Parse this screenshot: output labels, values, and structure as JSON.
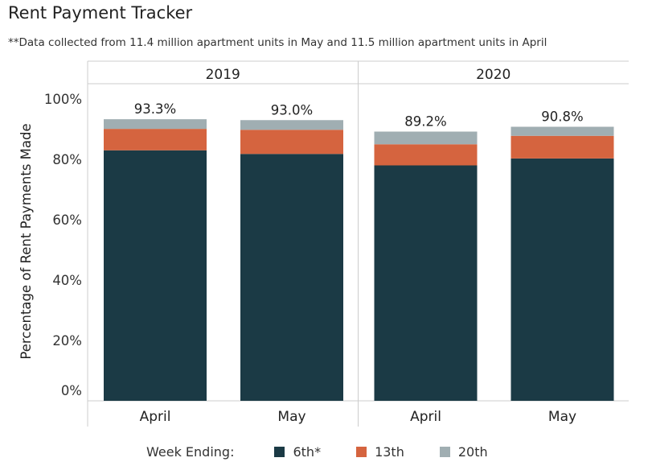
{
  "title": "Rent Payment Tracker",
  "subtitle": "**Data collected from 11.4 million apartment units in May and 11.5 million apartment units in April",
  "chart_data": {
    "type": "bar",
    "stacked": true,
    "panels": [
      "2019",
      "2020"
    ],
    "categories": [
      "April",
      "May"
    ],
    "ylabel": "Percentage of Rent Payments Made",
    "ylim": [
      0,
      100
    ],
    "yticks": [
      "0%",
      "20%",
      "40%",
      "60%",
      "80%",
      "100%"
    ],
    "series": [
      {
        "name": "6th*",
        "color": "#1b3a45",
        "values": {
          "2019": [
            83.0,
            81.8
          ],
          "2020": [
            78.0,
            80.3
          ]
        }
      },
      {
        "name": "13th",
        "color": "#d5643f",
        "values": {
          "2019": [
            7.1,
            8.0
          ],
          "2020": [
            7.0,
            7.5
          ]
        }
      },
      {
        "name": "20th",
        "color": "#a0aeb2",
        "values": {
          "2019": [
            3.2,
            3.2
          ],
          "2020": [
            4.2,
            3.0
          ]
        }
      }
    ],
    "totals": {
      "2019": [
        93.3,
        93.0
      ],
      "2020": [
        89.2,
        90.8
      ]
    },
    "total_labels": {
      "2019": [
        "93.3%",
        "93.0%"
      ],
      "2020": [
        "89.2%",
        "90.8%"
      ]
    },
    "legend": {
      "title": "Week Ending:",
      "placement": "bottom"
    }
  }
}
